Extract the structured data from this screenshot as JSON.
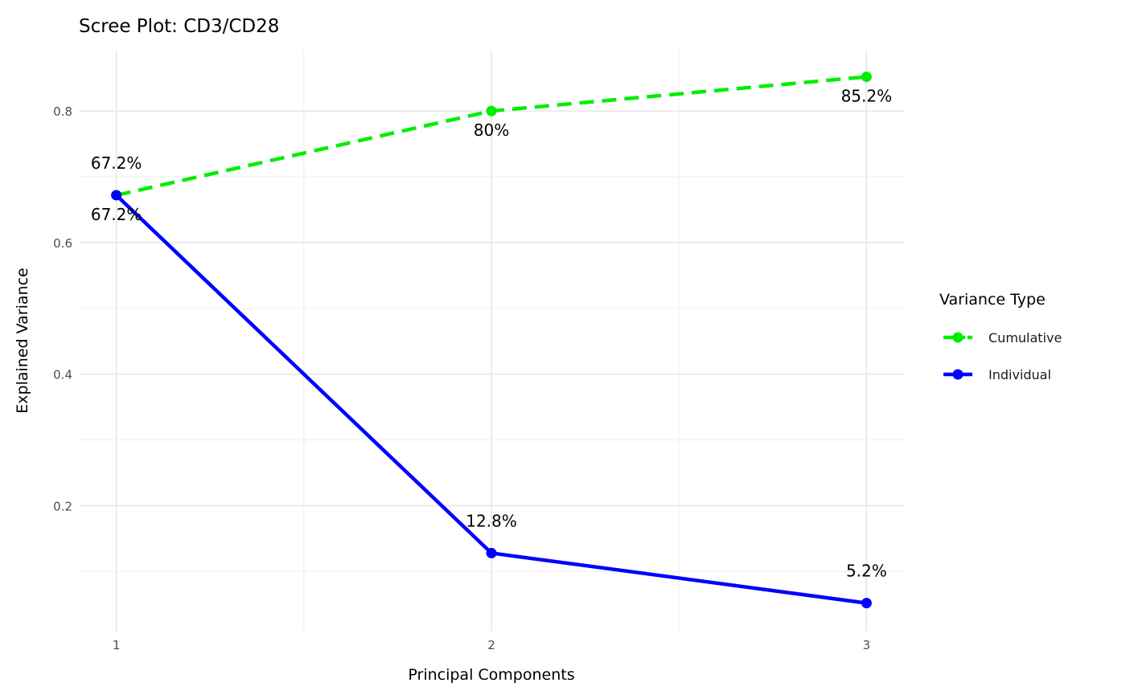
{
  "chart_data": {
    "type": "line",
    "title": "Scree Plot: CD3/CD28",
    "xlabel": "Principal Components",
    "ylabel": "Explained Variance",
    "x": [
      1,
      2,
      3
    ],
    "xlim": [
      0.9,
      3.1
    ],
    "ylim": [
      0.01,
      0.893
    ],
    "x_ticks": [
      1,
      2,
      3
    ],
    "y_ticks": [
      0.2,
      0.4,
      0.6,
      0.8
    ],
    "y_tick_labels": [
      "0.2",
      "0.4",
      "0.6",
      "0.8"
    ],
    "grid": true,
    "legend": {
      "title": "Variance Type",
      "placement": "right"
    },
    "series": [
      {
        "name": "Cumulative",
        "values": [
          0.672,
          0.8,
          0.852
        ],
        "labels": [
          "67.2%",
          "80%",
          "85.2%"
        ],
        "color": "#00ee00",
        "dash": true,
        "label_position": "below"
      },
      {
        "name": "Individual",
        "values": [
          0.672,
          0.128,
          0.052
        ],
        "labels": [
          "67.2%",
          "12.8%",
          "5.2%"
        ],
        "color": "#0000ff",
        "dash": false,
        "label_position": "above"
      }
    ]
  }
}
